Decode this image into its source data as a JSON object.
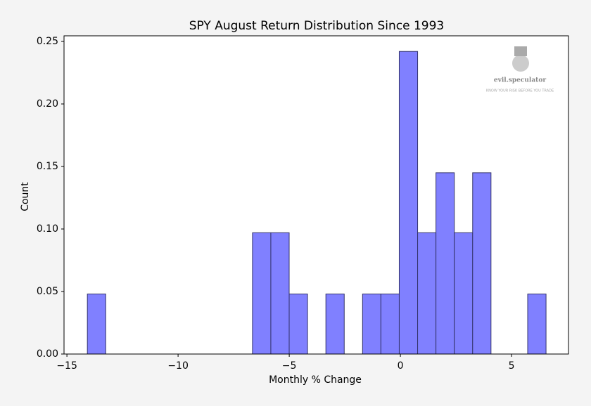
{
  "chart_data": {
    "type": "histogram",
    "title": "SPY August Return Distribution Since 1993",
    "xlabel": "Monthly % Change",
    "ylabel": "Count",
    "bins": [
      -14.08,
      -13.255,
      -12.43,
      -11.604,
      -10.779,
      -9.954,
      -9.129,
      -8.304,
      -7.478,
      -6.653,
      -5.828,
      -5.003,
      -4.178,
      -3.352,
      -2.527,
      -1.702,
      -0.877,
      -0.052,
      0.774,
      1.599,
      2.424,
      3.249,
      4.074,
      4.9,
      5.725,
      6.55
    ],
    "values": [
      0.048,
      0,
      0,
      0,
      0,
      0,
      0,
      0,
      0,
      0.097,
      0.097,
      0.048,
      0,
      0.048,
      0,
      0.048,
      0.048,
      0.242,
      0.097,
      0.145,
      0.097,
      0.145,
      0,
      0,
      0.048
    ],
    "color": "#8080ff",
    "edgecolor": "#33336b",
    "xlim": [
      -15.13,
      7.56
    ],
    "xticks": [
      {
        "value": -15,
        "label": "−15"
      },
      {
        "value": -10,
        "label": "−10"
      },
      {
        "value": -5,
        "label": "−5"
      },
      0,
      5
    ],
    "ylim": [
      0,
      0.2545
    ],
    "yticks": [
      {
        "value": 0,
        "label": "0.00"
      },
      {
        "value": 0.05,
        "label": "0.05"
      },
      {
        "value": 0.1,
        "label": "0.10"
      },
      {
        "value": 0.15,
        "label": "0.15"
      },
      {
        "value": 0.2,
        "label": "0.20"
      },
      {
        "value": 0.25,
        "label": "0.25"
      }
    ],
    "watermark": {
      "name": "evil.speculator",
      "tagline": "KNOW YOUR RISK BEFORE YOU TRADE"
    }
  }
}
